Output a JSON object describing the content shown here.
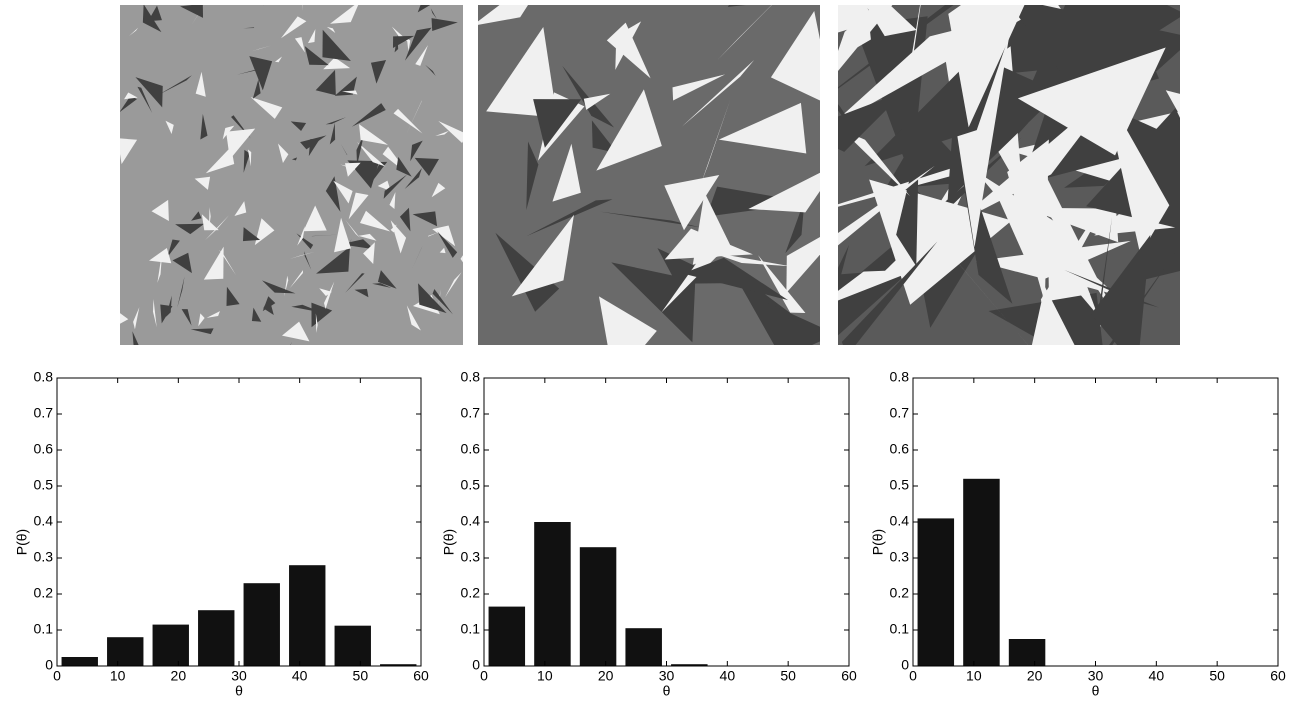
{
  "chart_data": [
    {
      "type": "histogram",
      "xlabel": "θ",
      "ylabel": "P(θ)",
      "color": "#111111",
      "bins": [
        0,
        7.5,
        15,
        22.5,
        30,
        37.5,
        45,
        52.5,
        60
      ],
      "values": [
        0.025,
        0.08,
        0.115,
        0.155,
        0.23,
        0.28,
        0.112,
        0.005
      ],
      "xlim": [
        0,
        60
      ],
      "xticks": [
        0,
        10,
        20,
        30,
        40,
        50,
        60
      ],
      "ylim": [
        0,
        0.8
      ],
      "yticks": [
        0,
        0.1,
        0.2,
        0.3,
        0.4,
        0.5,
        0.6,
        0.7,
        0.8
      ]
    },
    {
      "type": "histogram",
      "xlabel": "θ",
      "ylabel": "P(θ)",
      "color": "#111111",
      "bins": [
        0,
        7.5,
        15,
        22.5,
        30,
        37.5,
        45,
        52.5,
        60
      ],
      "values": [
        0.165,
        0.4,
        0.33,
        0.105,
        0.005,
        0,
        0,
        0
      ],
      "xlim": [
        0,
        60
      ],
      "xticks": [
        0,
        10,
        20,
        30,
        40,
        50,
        60
      ],
      "ylim": [
        0,
        0.8
      ],
      "yticks": [
        0,
        0.1,
        0.2,
        0.3,
        0.4,
        0.5,
        0.6,
        0.7,
        0.8
      ]
    },
    {
      "type": "histogram",
      "xlabel": "θ",
      "ylabel": "P(θ)",
      "color": "#111111",
      "bins": [
        0,
        7.5,
        15,
        22.5,
        30,
        37.5,
        45,
        52.5,
        60
      ],
      "values": [
        0.41,
        0.52,
        0.075,
        0,
        0,
        0,
        0,
        0
      ],
      "xlim": [
        0,
        60
      ],
      "xticks": [
        0,
        10,
        20,
        30,
        40,
        50,
        60
      ],
      "ylim": [
        0,
        0.8
      ],
      "yticks": [
        0,
        0.1,
        0.2,
        0.3,
        0.4,
        0.5,
        0.6,
        0.7,
        0.8
      ]
    }
  ]
}
